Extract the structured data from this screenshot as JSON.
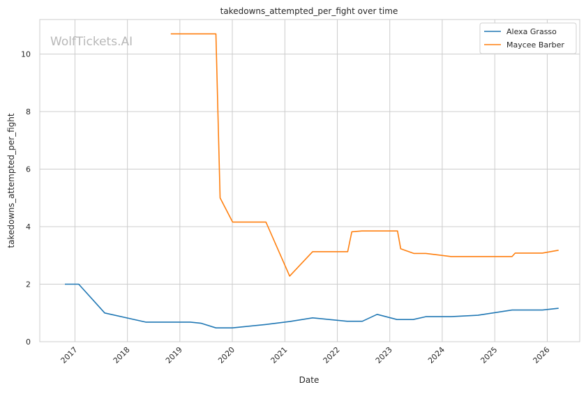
{
  "chart_data": {
    "type": "line",
    "title": "takedowns_attempted_per_fight over time",
    "xlabel": "Date",
    "ylabel": "takedowns_attempted_per_fight",
    "watermark": "WolfTickets.AI",
    "xlim": [
      "2016-05-01",
      "2026-08-15"
    ],
    "ylim": [
      0,
      11.2
    ],
    "x_ticks": [
      "2017",
      "2018",
      "2019",
      "2020",
      "2021",
      "2022",
      "2023",
      "2024",
      "2025",
      "2026"
    ],
    "y_ticks": [
      0,
      2,
      4,
      6,
      8,
      10
    ],
    "grid": true,
    "legend_position": "top-right",
    "series": [
      {
        "name": "Alexa Grasso",
        "color": "#1f77b4",
        "x": [
          "2016-10-23",
          "2017-01-27",
          "2017-07-27",
          "2018-05-08",
          "2019-03-15",
          "2019-05-30",
          "2019-09-09",
          "2020-01-01",
          "2020-08-22",
          "2021-02-03",
          "2021-07-13",
          "2022-03-10",
          "2022-06-24",
          "2022-10-05",
          "2023-02-20",
          "2023-06-13",
          "2023-09-09",
          "2024-03-03",
          "2024-09-05",
          "2025-05-01",
          "2025-11-28",
          "2026-03-21"
        ],
        "y": [
          2.0,
          2.0,
          1.0,
          0.68,
          0.68,
          0.64,
          0.48,
          0.48,
          0.6,
          0.7,
          0.83,
          0.71,
          0.71,
          0.95,
          0.77,
          0.77,
          0.87,
          0.87,
          0.92,
          1.1,
          1.1,
          1.16
        ]
      },
      {
        "name": "Maycee Barber",
        "color": "#ff7f0e",
        "x": [
          "2018-10-30",
          "2019-09-09",
          "2019-10-08",
          "2020-01-03",
          "2020-08-22",
          "2021-02-03",
          "2021-07-13",
          "2022-03-14",
          "2022-04-12",
          "2022-06-20",
          "2023-02-24",
          "2023-03-18",
          "2023-06-17",
          "2023-09-09",
          "2024-03-03",
          "2025-05-01",
          "2025-05-23",
          "2025-11-28",
          "2026-03-21"
        ],
        "y": [
          10.7,
          10.7,
          5.0,
          4.16,
          4.16,
          2.28,
          3.13,
          3.13,
          3.82,
          3.85,
          3.85,
          3.23,
          3.07,
          3.07,
          2.96,
          2.96,
          3.08,
          3.08,
          3.18
        ]
      }
    ]
  }
}
